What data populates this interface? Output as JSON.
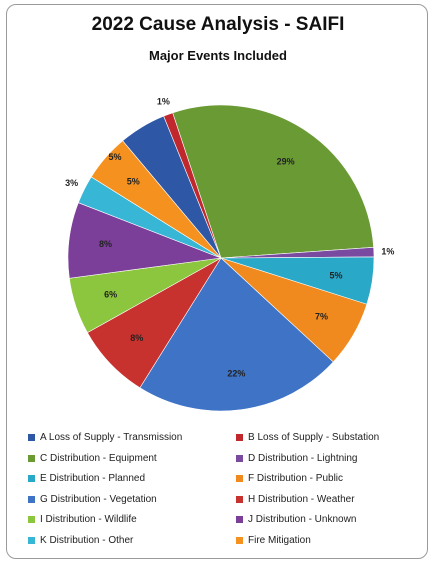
{
  "chart_data": {
    "type": "pie",
    "title": "2022 Cause Analysis - SAIFI",
    "subtitle": "Major Events Included",
    "legend_position": "bottom",
    "series": [
      {
        "name": "A Loss of Supply - Transmission",
        "value": 5,
        "label": "",
        "color": "#2e58a6"
      },
      {
        "name": "B Loss of Supply - Substation",
        "value": 1,
        "label": "1%",
        "color": "#c0282d"
      },
      {
        "name": "C Distribution - Equipment",
        "value": 29,
        "label": "29%",
        "color": "#6a9a34"
      },
      {
        "name": "D Distribution - Lightning",
        "value": 1,
        "label": "1%",
        "color": "#7a4aa0"
      },
      {
        "name": "E Distribution - Planned",
        "value": 5,
        "label": "5%",
        "color": "#2aa8c8"
      },
      {
        "name": "F Distribution - Public",
        "value": 7,
        "label": "7%",
        "color": "#f08a1e"
      },
      {
        "name": "G Distribution - Vegetation",
        "value": 22,
        "label": "22%",
        "color": "#3e73c6"
      },
      {
        "name": "H Distribution - Weather",
        "value": 8,
        "label": "8%",
        "color": "#c8322e"
      },
      {
        "name": "I Distribution - Wildlife",
        "value": 6,
        "label": "6%",
        "color": "#8cc63e"
      },
      {
        "name": "J Distribution - Unknown",
        "value": 8,
        "label": "8%",
        "color": "#7b3f99"
      },
      {
        "name": "K Distribution - Other",
        "value": 3,
        "label": "3%",
        "color": "#38b6d6"
      },
      {
        "name": "Fire Mitigation",
        "value": 5,
        "label": "5%",
        "color": "#f5921f"
      }
    ],
    "extra_labels": [
      "5%"
    ]
  }
}
